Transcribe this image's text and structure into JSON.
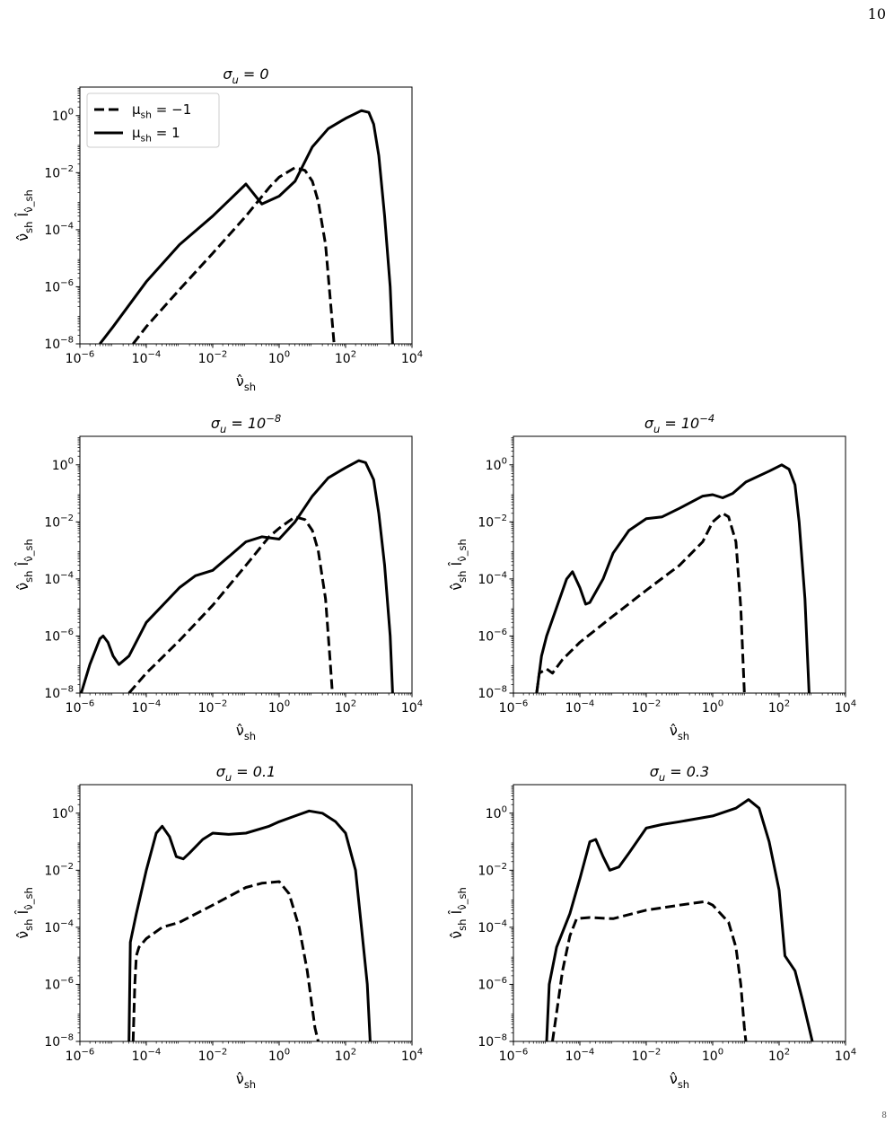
{
  "page": {
    "number": "10",
    "corner_mark": "8"
  },
  "chart_data": [
    {
      "type": "line",
      "title": "σ_u = 0",
      "xlabel": "ν̂_sh",
      "ylabel": "ν̂_sh Î_ν̂_sh",
      "x_scale": "log",
      "y_scale": "log",
      "xlim": [
        1e-06,
        10000.0
      ],
      "ylim": [
        1e-08,
        10
      ],
      "xticks": [
        "10^-6",
        "10^-4",
        "10^-2",
        "10^0",
        "10^2",
        "10^4"
      ],
      "yticks": [
        "10^-8",
        "10^-6",
        "10^-4",
        "10^-2",
        "10^0"
      ],
      "legend": {
        "placement": "upper left",
        "entries": [
          "μ_sh = −1",
          "μ_sh = 1"
        ]
      },
      "series": [
        {
          "name": "μ_sh = −1",
          "style": "dashed",
          "points": [
            [
              4e-05,
              1e-08
            ],
            [
              0.0001,
              4e-08
            ],
            [
              0.001,
              8e-07
            ],
            [
              0.01,
              1.5e-05
            ],
            [
              0.1,
              0.0003
            ],
            [
              0.5,
              0.003
            ],
            [
              1,
              0.007
            ],
            [
              3,
              0.015
            ],
            [
              6,
              0.012
            ],
            [
              10,
              0.005
            ],
            [
              15,
              0.001
            ],
            [
              25,
              3e-05
            ],
            [
              38,
              1e-07
            ],
            [
              45,
              1e-08
            ]
          ]
        },
        {
          "name": "μ_sh = 1",
          "style": "solid",
          "points": [
            [
              4e-06,
              1e-08
            ],
            [
              1e-05,
              4e-08
            ],
            [
              0.0001,
              1.5e-06
            ],
            [
              0.001,
              3e-05
            ],
            [
              0.01,
              0.0003
            ],
            [
              0.1,
              0.004
            ],
            [
              0.3,
              0.0008
            ],
            [
              1,
              0.0015
            ],
            [
              3,
              0.005
            ],
            [
              10,
              0.08
            ],
            [
              30,
              0.35
            ],
            [
              100,
              0.8
            ],
            [
              300,
              1.5
            ],
            [
              500,
              1.3
            ],
            [
              700,
              0.5
            ],
            [
              1000,
              0.04
            ],
            [
              1500,
              0.0003
            ],
            [
              2200,
              1e-06
            ],
            [
              2600,
              1e-08
            ]
          ]
        }
      ]
    },
    {
      "type": "line",
      "title": "σ_u = 10^−8",
      "xlabel": "ν̂_sh",
      "ylabel": "ν̂_sh Î_ν̂_sh",
      "x_scale": "log",
      "y_scale": "log",
      "xlim": [
        1e-06,
        10000.0
      ],
      "ylim": [
        1e-08,
        10
      ],
      "xticks": [
        "10^-6",
        "10^-4",
        "10^-2",
        "10^0",
        "10^2",
        "10^4"
      ],
      "yticks": [
        "10^-8",
        "10^-6",
        "10^-4",
        "10^-2",
        "10^0"
      ],
      "series": [
        {
          "style": "dashed",
          "points": [
            [
              3e-05,
              1e-08
            ],
            [
              0.0001,
              5e-08
            ],
            [
              0.001,
              7e-07
            ],
            [
              0.01,
              1.2e-05
            ],
            [
              0.1,
              0.0003
            ],
            [
              0.5,
              0.003
            ],
            [
              1,
              0.006
            ],
            [
              3,
              0.015
            ],
            [
              6,
              0.012
            ],
            [
              10,
              0.005
            ],
            [
              15,
              0.001
            ],
            [
              25,
              2e-05
            ],
            [
              35,
              1e-07
            ],
            [
              40,
              1e-08
            ]
          ]
        },
        {
          "name": "μ_sh = 1",
          "style": "solid",
          "points": [
            [
              1.1e-06,
              1e-08
            ],
            [
              2e-06,
              1e-07
            ],
            [
              4e-06,
              8e-07
            ],
            [
              5e-06,
              1e-06
            ],
            [
              7e-06,
              6e-07
            ],
            [
              1e-05,
              2e-07
            ],
            [
              1.5e-05,
              1e-07
            ],
            [
              3e-05,
              2e-07
            ],
            [
              0.0001,
              3e-06
            ],
            [
              0.001,
              5e-05
            ],
            [
              0.003,
              0.00013
            ],
            [
              0.01,
              0.0002
            ],
            [
              0.03,
              0.0006
            ],
            [
              0.1,
              0.002
            ],
            [
              0.3,
              0.003
            ],
            [
              1,
              0.0025
            ],
            [
              3,
              0.01
            ],
            [
              10,
              0.08
            ],
            [
              30,
              0.35
            ],
            [
              100,
              0.8
            ],
            [
              250,
              1.4
            ],
            [
              400,
              1.2
            ],
            [
              700,
              0.3
            ],
            [
              1000,
              0.02
            ],
            [
              1500,
              0.0003
            ],
            [
              2200,
              1e-06
            ],
            [
              2600,
              1e-08
            ]
          ]
        }
      ]
    },
    {
      "type": "line",
      "title": "σ_u = 10^−4",
      "xlabel": "ν̂_sh",
      "ylabel": "ν̂_sh Î_ν̂_sh",
      "x_scale": "log",
      "y_scale": "log",
      "xlim": [
        1e-06,
        10000.0
      ],
      "ylim": [
        1e-08,
        10
      ],
      "xticks": [
        "10^-6",
        "10^-4",
        "10^-2",
        "10^0",
        "10^2",
        "10^4"
      ],
      "yticks": [
        "10^-8",
        "10^-6",
        "10^-4",
        "10^-2",
        "10^0"
      ],
      "series": [
        {
          "style": "dashed",
          "points": [
            [
              5e-06,
              1e-08
            ],
            [
              6e-06,
              5e-08
            ],
            [
              8e-06,
              6e-08
            ],
            [
              1e-05,
              7e-08
            ],
            [
              1.5e-05,
              5e-08
            ],
            [
              3e-05,
              1.5e-07
            ],
            [
              0.0001,
              6e-07
            ],
            [
              0.001,
              5e-06
            ],
            [
              0.01,
              4e-05
            ],
            [
              0.1,
              0.0003
            ],
            [
              0.5,
              0.002
            ],
            [
              1,
              0.01
            ],
            [
              2,
              0.02
            ],
            [
              3,
              0.015
            ],
            [
              5,
              0.002
            ],
            [
              7,
              1e-05
            ],
            [
              9,
              1e-08
            ]
          ]
        },
        {
          "name": "μ_sh = 1",
          "style": "solid",
          "points": [
            [
              5e-06,
              1e-08
            ],
            [
              7e-06,
              2e-07
            ],
            [
              1e-05,
              1e-06
            ],
            [
              2e-05,
              1e-05
            ],
            [
              4e-05,
              0.0001
            ],
            [
              6e-05,
              0.00018
            ],
            [
              0.0001,
              5e-05
            ],
            [
              0.00015,
              1.3e-05
            ],
            [
              0.0002,
              1.5e-05
            ],
            [
              0.0005,
              0.0001
            ],
            [
              0.001,
              0.0008
            ],
            [
              0.003,
              0.005
            ],
            [
              0.01,
              0.013
            ],
            [
              0.03,
              0.015
            ],
            [
              0.1,
              0.03
            ],
            [
              0.5,
              0.08
            ],
            [
              1,
              0.09
            ],
            [
              2,
              0.07
            ],
            [
              4,
              0.1
            ],
            [
              10,
              0.25
            ],
            [
              50,
              0.6
            ],
            [
              120,
              1.0
            ],
            [
              200,
              0.7
            ],
            [
              300,
              0.2
            ],
            [
              400,
              0.01
            ],
            [
              600,
              2e-05
            ],
            [
              800,
              1e-08
            ]
          ]
        }
      ]
    },
    {
      "type": "line",
      "title": "σ_u = 0.1",
      "xlabel": "ν̂_sh",
      "ylabel": "ν̂_sh Î_ν̂_sh",
      "x_scale": "log",
      "y_scale": "log",
      "xlim": [
        1e-06,
        10000.0
      ],
      "ylim": [
        1e-08,
        10
      ],
      "xticks": [
        "10^-6",
        "10^-4",
        "10^-2",
        "10^0",
        "10^2",
        "10^4"
      ],
      "yticks": [
        "10^-8",
        "10^-6",
        "10^-4",
        "10^-2",
        "10^0"
      ],
      "series": [
        {
          "style": "dashed",
          "points": [
            [
              4e-05,
              1e-08
            ],
            [
              4.5e-05,
              1e-06
            ],
            [
              5e-05,
              1e-05
            ],
            [
              6e-05,
              2e-05
            ],
            [
              0.0001,
              4e-05
            ],
            [
              0.0003,
              0.0001
            ],
            [
              0.001,
              0.00015
            ],
            [
              0.01,
              0.0006
            ],
            [
              0.1,
              0.0025
            ],
            [
              0.3,
              0.0035
            ],
            [
              1,
              0.004
            ],
            [
              2,
              0.0015
            ],
            [
              4,
              0.0001
            ],
            [
              7,
              3e-06
            ],
            [
              12,
              3e-08
            ],
            [
              15,
              1e-08
            ]
          ]
        },
        {
          "name": "μ_sh = 1",
          "style": "solid",
          "points": [
            [
              3e-05,
              1e-08
            ],
            [
              3.3e-05,
              3e-05
            ],
            [
              5e-05,
              0.0003
            ],
            [
              0.0001,
              0.01
            ],
            [
              0.0002,
              0.2
            ],
            [
              0.0003,
              0.35
            ],
            [
              0.0005,
              0.15
            ],
            [
              0.0008,
              0.03
            ],
            [
              0.0013,
              0.025
            ],
            [
              0.002,
              0.04
            ],
            [
              0.005,
              0.12
            ],
            [
              0.01,
              0.2
            ],
            [
              0.03,
              0.18
            ],
            [
              0.1,
              0.2
            ],
            [
              0.5,
              0.35
            ],
            [
              1,
              0.5
            ],
            [
              3,
              0.8
            ],
            [
              8,
              1.2
            ],
            [
              20,
              1.0
            ],
            [
              50,
              0.5
            ],
            [
              100,
              0.2
            ],
            [
              200,
              0.01
            ],
            [
              300,
              0.0001
            ],
            [
              450,
              1e-06
            ],
            [
              550,
              1e-08
            ]
          ]
        }
      ]
    },
    {
      "type": "line",
      "title": "σ_u = 0.3",
      "xlabel": "ν̂_sh",
      "ylabel": "ν̂_sh Î_ν̂_sh",
      "x_scale": "log",
      "y_scale": "log",
      "xlim": [
        1e-06,
        10000.0
      ],
      "ylim": [
        1e-08,
        10
      ],
      "xticks": [
        "10^-6",
        "10^-4",
        "10^-2",
        "10^0",
        "10^2",
        "10^4"
      ],
      "yticks": [
        "10^-8",
        "10^-6",
        "10^-4",
        "10^-2",
        "10^0"
      ],
      "series": [
        {
          "style": "dashed",
          "points": [
            [
              1.5e-05,
              1e-08
            ],
            [
              2e-05,
              1e-07
            ],
            [
              3e-05,
              3e-06
            ],
            [
              5e-05,
              5e-05
            ],
            [
              8e-05,
              0.0002
            ],
            [
              0.0002,
              0.00022
            ],
            [
              0.001,
              0.0002
            ],
            [
              0.01,
              0.0004
            ],
            [
              0.1,
              0.0006
            ],
            [
              0.6,
              0.0008
            ],
            [
              1,
              0.0006
            ],
            [
              3,
              0.00015
            ],
            [
              5,
              2e-05
            ],
            [
              7,
              1e-06
            ],
            [
              9,
              3e-08
            ],
            [
              10,
              1e-08
            ]
          ]
        },
        {
          "name": "μ_sh = 1",
          "style": "solid",
          "points": [
            [
              1e-05,
              1e-08
            ],
            [
              1.2e-05,
              1e-06
            ],
            [
              2e-05,
              2e-05
            ],
            [
              5e-05,
              0.0003
            ],
            [
              0.0001,
              0.005
            ],
            [
              0.0002,
              0.1
            ],
            [
              0.0003,
              0.12
            ],
            [
              0.0005,
              0.03
            ],
            [
              0.0008,
              0.01
            ],
            [
              0.0015,
              0.013
            ],
            [
              0.003,
              0.04
            ],
            [
              0.01,
              0.3
            ],
            [
              0.03,
              0.4
            ],
            [
              0.1,
              0.5
            ],
            [
              1,
              0.8
            ],
            [
              5,
              1.5
            ],
            [
              12,
              3
            ],
            [
              25,
              1.5
            ],
            [
              50,
              0.1
            ],
            [
              100,
              0.002
            ],
            [
              150,
              1e-05
            ],
            [
              300,
              3e-06
            ],
            [
              500,
              3e-07
            ],
            [
              1000,
              1e-08
            ]
          ]
        }
      ]
    }
  ]
}
